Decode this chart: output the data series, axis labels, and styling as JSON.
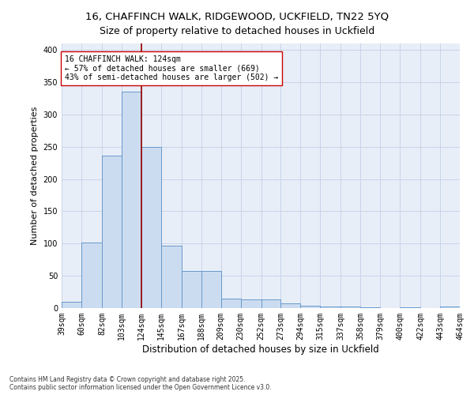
{
  "title_line1": "16, CHAFFINCH WALK, RIDGEWOOD, UCKFIELD, TN22 5YQ",
  "title_line2": "Size of property relative to detached houses in Uckfield",
  "xlabel": "Distribution of detached houses by size in Uckfield",
  "ylabel": "Number of detached properties",
  "annotation_line1": "16 CHAFFINCH WALK: 124sqm",
  "annotation_line2": "← 57% of detached houses are smaller (669)",
  "annotation_line3": "43% of semi-detached houses are larger (502) →",
  "bins": [
    39,
    60,
    82,
    103,
    124,
    145,
    167,
    188,
    209,
    230,
    252,
    273,
    294,
    315,
    337,
    358,
    379,
    400,
    422,
    443,
    464
  ],
  "values": [
    10,
    102,
    236,
    335,
    250,
    97,
    57,
    57,
    15,
    13,
    13,
    7,
    4,
    3,
    2,
    1,
    0,
    1,
    0,
    2
  ],
  "bar_color": "#ccdcf0",
  "bar_edge_color": "#6699cc",
  "vline_color": "#990000",
  "vline_x": 124,
  "grid_color": "#c8d4e8",
  "background_color": "#e8eef8",
  "annotation_box_facecolor": "#ffffff",
  "annotation_box_edgecolor": "#cc0000",
  "ylim": [
    0,
    410
  ],
  "yticks": [
    0,
    50,
    100,
    150,
    200,
    250,
    300,
    350,
    400
  ],
  "title_fontsize": 9.5,
  "ylabel_fontsize": 8,
  "xlabel_fontsize": 8.5,
  "tick_fontsize": 7,
  "annotation_fontsize": 7,
  "footer": "Contains HM Land Registry data © Crown copyright and database right 2025.\nContains public sector information licensed under the Open Government Licence v3.0.",
  "footer_fontsize": 5.5
}
